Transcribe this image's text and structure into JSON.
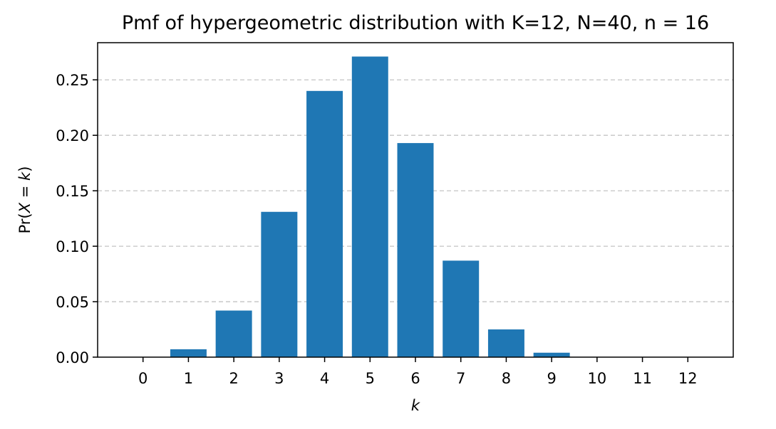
{
  "chart_data": {
    "type": "bar",
    "title": "Pmf of hypergeometric distribution with K=12, N=40, n = 16",
    "xlabel": "k",
    "ylabel": {
      "prefix": "Pr(",
      "var": "X",
      "op": " = ",
      "val": "k",
      "suffix": ")"
    },
    "categories": [
      "0",
      "1",
      "2",
      "3",
      "4",
      "5",
      "6",
      "7",
      "8",
      "9",
      "10",
      "11",
      "12"
    ],
    "values": [
      0.0001,
      0.0071,
      0.042,
      0.131,
      0.24,
      0.271,
      0.193,
      0.087,
      0.025,
      0.004,
      0.0003,
      1e-05,
      2e-07
    ],
    "yticks": [
      "0.00",
      "0.05",
      "0.10",
      "0.15",
      "0.20",
      "0.25"
    ],
    "ylim": [
      0,
      0.2835
    ],
    "xlim": [
      -1,
      13
    ],
    "grid": "y-dashed",
    "colors": {
      "bar": "#1f77b4",
      "grid": "#c4c4c4",
      "axis": "#000000"
    }
  }
}
